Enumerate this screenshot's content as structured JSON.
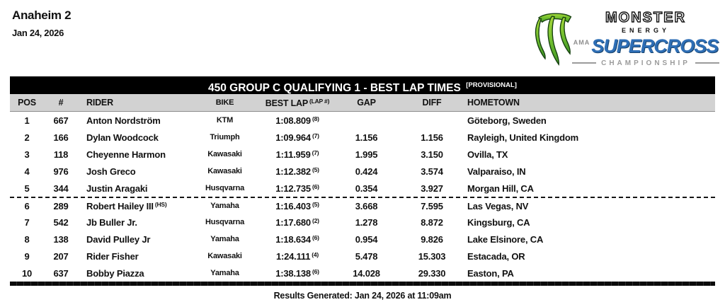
{
  "event": {
    "name": "Anaheim 2",
    "date": "Jan 24, 2026"
  },
  "logo": {
    "monster": "MONSTER",
    "energy": "ENERGY",
    "ama": "AMA",
    "supercross": "SUPERCROSS",
    "championship": "CHAMPIONSHIP",
    "colors": {
      "claw_green_light": "#a8d93a",
      "claw_green_dark": "#3f9326",
      "supercross_blue": "#2e6eb5",
      "championship_gray": "#9b9b9b"
    }
  },
  "table": {
    "title": "450 GROUP C QUALIFYING 1 - BEST LAP TIMES",
    "provisional_tag": "[PROVISIONAL]",
    "columns": {
      "pos": "POS",
      "num": "#",
      "rider": "RIDER",
      "bike": "BIKE",
      "best_lap": "BEST LAP",
      "lap_note": "(LAP #)",
      "gap": "GAP",
      "diff": "DIFF",
      "hometown": "HOMETOWN"
    },
    "rows": [
      {
        "pos": "1",
        "num": "667",
        "rider": "Anton Nordström",
        "rider_tag": "",
        "bike": "KTM",
        "best_lap": "1:08.809",
        "lap_no": "(8)",
        "gap": "",
        "diff": "",
        "hometown": "Göteborg, Sweden"
      },
      {
        "pos": "2",
        "num": "166",
        "rider": "Dylan Woodcock",
        "rider_tag": "",
        "bike": "Triumph",
        "best_lap": "1:09.964",
        "lap_no": "(7)",
        "gap": "1.156",
        "diff": "1.156",
        "hometown": "Rayleigh, United Kingdom"
      },
      {
        "pos": "3",
        "num": "118",
        "rider": "Cheyenne Harmon",
        "rider_tag": "",
        "bike": "Kawasaki",
        "best_lap": "1:11.959",
        "lap_no": "(7)",
        "gap": "1.995",
        "diff": "3.150",
        "hometown": "Ovilla, TX"
      },
      {
        "pos": "4",
        "num": "976",
        "rider": "Josh Greco",
        "rider_tag": "",
        "bike": "Kawasaki",
        "best_lap": "1:12.382",
        "lap_no": "(5)",
        "gap": "0.424",
        "diff": "3.574",
        "hometown": "Valparaiso, IN"
      },
      {
        "pos": "5",
        "num": "344",
        "rider": "Justin Aragaki",
        "rider_tag": "",
        "bike": "Husqvarna",
        "best_lap": "1:12.735",
        "lap_no": "(6)",
        "gap": "0.354",
        "diff": "3.927",
        "hometown": "Morgan Hill, CA"
      },
      {
        "pos": "6",
        "num": "289",
        "rider": "Robert Hailey III",
        "rider_tag": "(HS)",
        "bike": "Yamaha",
        "best_lap": "1:16.403",
        "lap_no": "(5)",
        "gap": "3.668",
        "diff": "7.595",
        "hometown": "Las Vegas, NV"
      },
      {
        "pos": "7",
        "num": "542",
        "rider": "Jb Buller Jr.",
        "rider_tag": "",
        "bike": "Husqvarna",
        "best_lap": "1:17.680",
        "lap_no": "(2)",
        "gap": "1.278",
        "diff": "8.872",
        "hometown": "Kingsburg, CA"
      },
      {
        "pos": "8",
        "num": "138",
        "rider": "David Pulley Jr",
        "rider_tag": "",
        "bike": "Yamaha",
        "best_lap": "1:18.634",
        "lap_no": "(6)",
        "gap": "0.954",
        "diff": "9.826",
        "hometown": "Lake Elsinore, CA"
      },
      {
        "pos": "9",
        "num": "207",
        "rider": "Rider Fisher",
        "rider_tag": "",
        "bike": "Kawasaki",
        "best_lap": "1:24.111",
        "lap_no": "(4)",
        "gap": "5.478",
        "diff": "15.303",
        "hometown": "Estacada, OR"
      },
      {
        "pos": "10",
        "num": "637",
        "rider": "Bobby Piazza",
        "rider_tag": "",
        "bike": "Yamaha",
        "best_lap": "1:38.138",
        "lap_no": "(6)",
        "gap": "14.028",
        "diff": "29.330",
        "hometown": "Easton, PA"
      }
    ],
    "separator_after_pos": "5"
  },
  "footer": {
    "generated_label": "Results Generated: Jan 24, 2026 at 11:09am"
  }
}
